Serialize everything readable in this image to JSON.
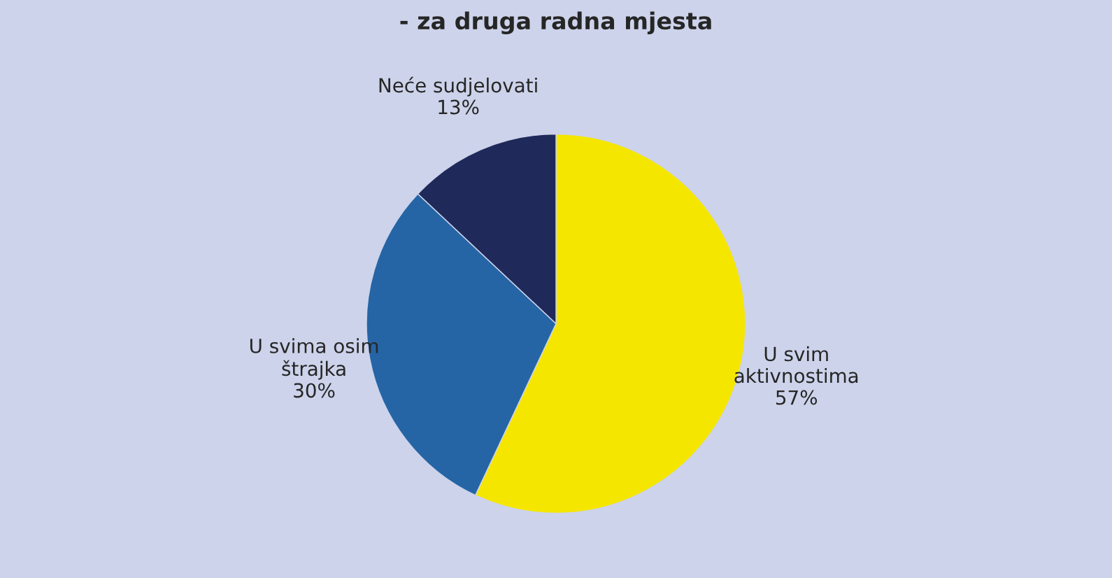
{
  "chart_data": {
    "type": "pie",
    "title": "- za druga radna mjesta",
    "categories": [
      "U svim\naktivnostima",
      "U svima osim\nštrajka",
      "Neće sudjelovati"
    ],
    "values": [
      57,
      30,
      13
    ],
    "colors": [
      "#f5e600",
      "#2565a5",
      "#1f2a5a"
    ],
    "value_labels": [
      "57%",
      "30%",
      "13%"
    ],
    "legend": false
  }
}
